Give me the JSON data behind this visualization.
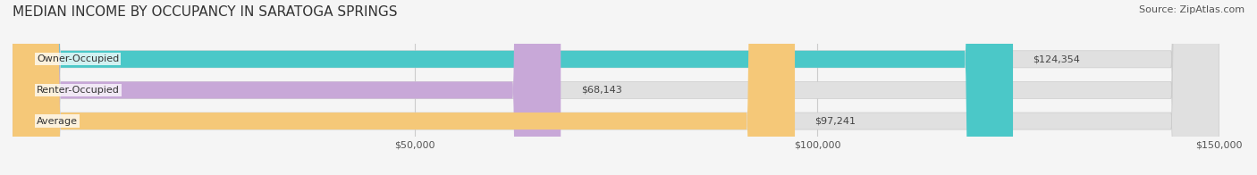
{
  "title": "MEDIAN INCOME BY OCCUPANCY IN SARATOGA SPRINGS",
  "source": "Source: ZipAtlas.com",
  "categories": [
    "Owner-Occupied",
    "Renter-Occupied",
    "Average"
  ],
  "values": [
    124354,
    68143,
    97241
  ],
  "value_labels": [
    "$124,354",
    "$68,143",
    "$97,241"
  ],
  "bar_colors": [
    "#4bc8c8",
    "#c8a8d8",
    "#f5c878"
  ],
  "bar_bg_color": "#e0e0e0",
  "xlim": [
    0,
    150000
  ],
  "xticks": [
    50000,
    100000,
    150000
  ],
  "xtick_labels": [
    "$50,000",
    "$100,000",
    "$150,000"
  ],
  "title_fontsize": 11,
  "source_fontsize": 8,
  "tick_fontsize": 8,
  "bar_label_fontsize": 8,
  "cat_label_fontsize": 8,
  "background_color": "#f5f5f5",
  "bar_height": 0.55
}
